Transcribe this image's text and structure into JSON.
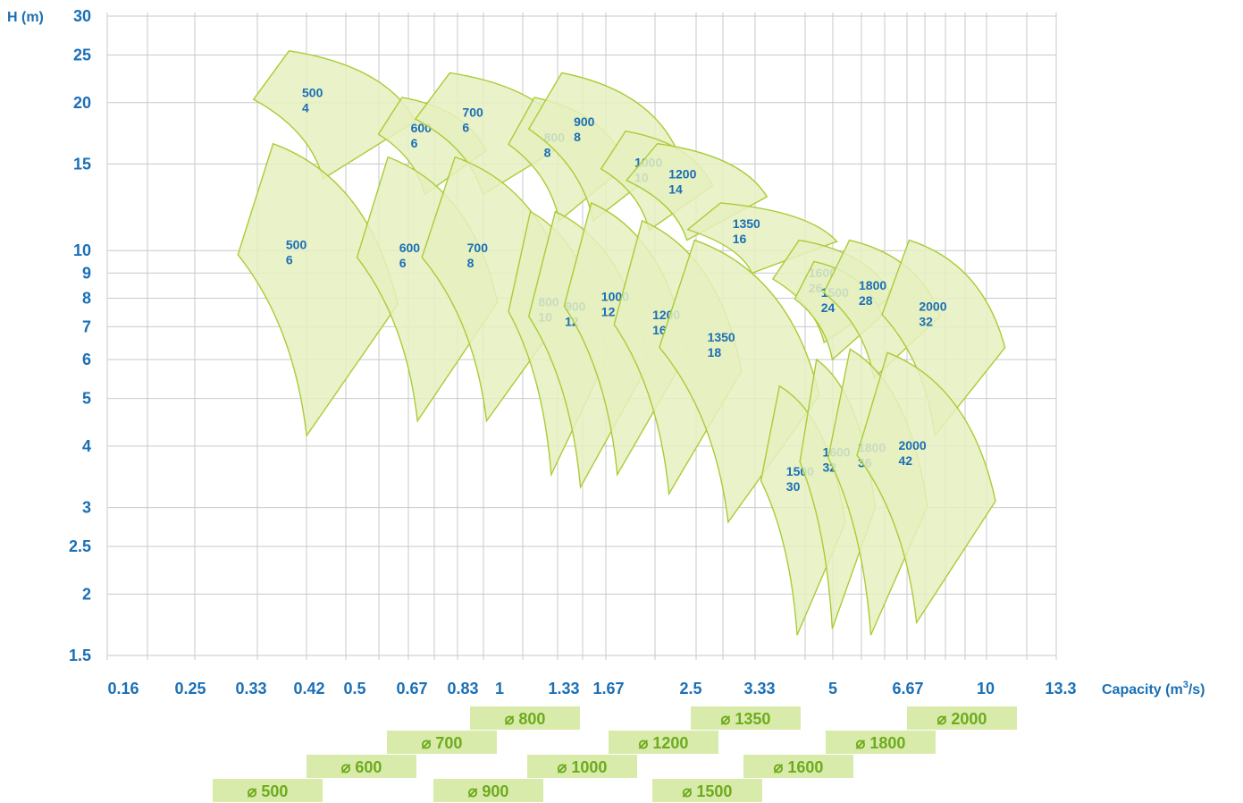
{
  "chart_data": {
    "type": "area",
    "ylabel": "H (m)",
    "xlabel": "Capacity (m",
    "xlabel_sup": "3",
    "xlabel_tail": "/s)",
    "x_ticks": [
      "0.16",
      "0.25",
      "0.33",
      "0.42",
      "0.5",
      "0.67",
      "0.83",
      "1",
      "1.33",
      "1.67",
      "2.5",
      "3.33",
      "5",
      "6.67",
      "10",
      "13.3"
    ],
    "y_ticks": [
      "30",
      "25",
      "20",
      "15",
      "10",
      "9",
      "8",
      "7",
      "6",
      "5",
      "4",
      "3",
      "2.5",
      "2",
      "1.5"
    ],
    "grid": true,
    "colors": {
      "fill": "#e6f0c0",
      "stroke": "#a9cc35",
      "text": "#1a6fb5",
      "legend_fill": "#d9ebaa",
      "legend_text": "#6dab1e"
    },
    "regions": [
      {
        "diameter": "500",
        "speed": "4",
        "q_min": 0.27,
        "q_max": 0.6,
        "h_top": 25.5,
        "h_bottom": 14
      },
      {
        "diameter": "600",
        "speed": "6",
        "q_min": 0.5,
        "q_max": 0.85,
        "h_top": 20.5,
        "h_bottom": 13
      },
      {
        "diameter": "700",
        "speed": "6",
        "q_min": 0.6,
        "q_max": 1.3,
        "h_top": 23,
        "h_bottom": 13
      },
      {
        "diameter": "800",
        "speed": "8",
        "q_min": 0.95,
        "q_max": 1.7,
        "h_top": 20.5,
        "h_bottom": 11.5
      },
      {
        "diameter": "900",
        "speed": "8",
        "q_min": 1.05,
        "q_max": 2.2,
        "h_top": 23,
        "h_bottom": 11.5
      },
      {
        "diameter": "1000",
        "speed": "10",
        "q_min": 1.5,
        "q_max": 2.6,
        "h_top": 17.5,
        "h_bottom": 11
      },
      {
        "diameter": "1200",
        "speed": "14",
        "q_min": 1.7,
        "q_max": 3.4,
        "h_top": 16.5,
        "h_bottom": 10.5
      },
      {
        "diameter": "1350",
        "speed": "16",
        "q_min": 2.3,
        "q_max": 4.8,
        "h_top": 12.5,
        "h_bottom": 9
      },
      {
        "diameter": "1600",
        "speed": "26",
        "q_min": 3.5,
        "q_max": 6.3,
        "h_top": 10.5,
        "h_bottom": 6.5
      },
      {
        "diameter": "1500",
        "speed": "24",
        "q_min": 3.9,
        "q_max": 6.0,
        "h_top": 9.5,
        "h_bottom": 6.0
      },
      {
        "diameter": "1800",
        "speed": "28",
        "q_min": 4.5,
        "q_max": 8.0,
        "h_top": 10.5,
        "h_bottom": 5.5
      },
      {
        "diameter": "2000",
        "speed": "32",
        "q_min": 6.0,
        "q_max": 11.0,
        "h_top": 10.5,
        "h_bottom": 4.2
      },
      {
        "diameter": "500",
        "speed": "6",
        "q_min": 0.25,
        "q_max": 0.55,
        "h_top": 16.5,
        "h_bottom": 4.2
      },
      {
        "diameter": "600",
        "speed": "6",
        "q_min": 0.45,
        "q_max": 0.9,
        "h_top": 15.5,
        "h_bottom": 4.5
      },
      {
        "diameter": "700",
        "speed": "8",
        "q_min": 0.62,
        "q_max": 1.3,
        "h_top": 15.5,
        "h_bottom": 4.5
      },
      {
        "diameter": "800",
        "speed": "10",
        "q_min": 0.95,
        "q_max": 1.55,
        "h_top": 12.0,
        "h_bottom": 3.5
      },
      {
        "diameter": "900",
        "speed": "12",
        "q_min": 1.05,
        "q_max": 1.9,
        "h_top": 12.0,
        "h_bottom": 3.3
      },
      {
        "diameter": "1000",
        "speed": "12",
        "q_min": 1.25,
        "q_max": 2.3,
        "h_top": 12.5,
        "h_bottom": 3.5
      },
      {
        "diameter": "1200",
        "speed": "16",
        "q_min": 1.6,
        "q_max": 3.0,
        "h_top": 11.5,
        "h_bottom": 3.2
      },
      {
        "diameter": "1350",
        "speed": "18",
        "q_min": 2.0,
        "q_max": 4.4,
        "h_top": 10.5,
        "h_bottom": 2.8
      },
      {
        "diameter": "1500",
        "speed": "30",
        "q_min": 3.3,
        "q_max": 5.0,
        "h_top": 5.3,
        "h_bottom": 1.65
      },
      {
        "diameter": "1600",
        "speed": "32",
        "q_min": 4.0,
        "q_max": 5.8,
        "h_top": 6.0,
        "h_bottom": 1.7
      },
      {
        "diameter": "1800",
        "speed": "36",
        "q_min": 4.6,
        "q_max": 7.5,
        "h_top": 6.3,
        "h_bottom": 1.65
      },
      {
        "diameter": "2000",
        "speed": "42",
        "q_min": 5.3,
        "q_max": 10.5,
        "h_top": 6.2,
        "h_bottom": 1.75
      }
    ],
    "legend": [
      {
        "label": "⌀ 800"
      },
      {
        "label": "⌀ 700"
      },
      {
        "label": "⌀ 600"
      },
      {
        "label": "⌀ 500"
      },
      {
        "label": "⌀ 1350"
      },
      {
        "label": "⌀ 1200"
      },
      {
        "label": "⌀ 1000"
      },
      {
        "label": "⌀ 900"
      },
      {
        "label": "⌀ 2000"
      },
      {
        "label": "⌀ 1800"
      },
      {
        "label": "⌀ 1600"
      },
      {
        "label": "⌀ 1500"
      }
    ]
  }
}
